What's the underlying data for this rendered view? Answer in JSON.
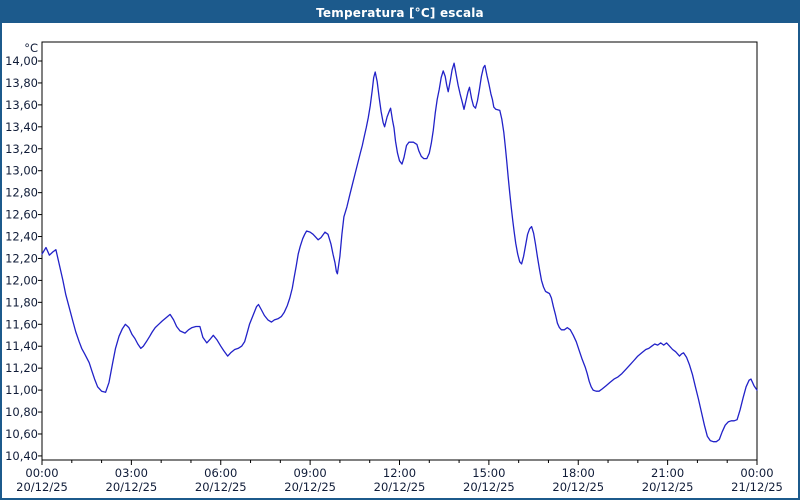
{
  "window": {
    "title": "Temperatura [°C] escala"
  },
  "colors": {
    "titlebar_bg": "#1c5a8c",
    "window_border": "#1c5a8c",
    "title_text": "#ffffff",
    "plot_bg": "#ffffff",
    "plot_border": "#000000",
    "grid": "#1c1c1c",
    "axis_text": "#101c38",
    "line": "#2222c8"
  },
  "chart_data": {
    "type": "line",
    "title": "Temperatura [°C] escala",
    "xlabel": "",
    "ylabel": "°C",
    "grid": true,
    "legend_position": "none",
    "ylim": [
      10.4,
      14.0
    ],
    "y_axis": {
      "unit_label": "°C",
      "min": 10.4,
      "max": 14.0,
      "step": 0.2,
      "tick_labels": [
        "14,00",
        "13,80",
        "13,60",
        "13,40",
        "13,20",
        "13,00",
        "12,80",
        "12,60",
        "12,40",
        "12,20",
        "12,00",
        "11,80",
        "11,60",
        "11,40",
        "11,20",
        "11,00",
        "10,80",
        "10,60",
        "10,40"
      ]
    },
    "x_axis": {
      "span_hours": 24,
      "major_step_hours": 3,
      "minor_step_hours": 1,
      "tick_labels": [
        {
          "time": "00:00",
          "date": "20/12/25"
        },
        {
          "time": "03:00",
          "date": "20/12/25"
        },
        {
          "time": "06:00",
          "date": "20/12/25"
        },
        {
          "time": "09:00",
          "date": "20/12/25"
        },
        {
          "time": "12:00",
          "date": "20/12/25"
        },
        {
          "time": "15:00",
          "date": "20/12/25"
        },
        {
          "time": "18:00",
          "date": "20/12/25"
        },
        {
          "time": "21:00",
          "date": "20/12/25"
        },
        {
          "time": "00:00",
          "date": "21/12/25"
        }
      ]
    },
    "series": [
      {
        "name": "temperatura",
        "color": "#2222c8",
        "points_time_min_value_c": [
          [
            0,
            12.24
          ],
          [
            8,
            12.3
          ],
          [
            15,
            12.23
          ],
          [
            22,
            12.26
          ],
          [
            28,
            12.28
          ],
          [
            35,
            12.14
          ],
          [
            42,
            12.0
          ],
          [
            48,
            11.87
          ],
          [
            55,
            11.75
          ],
          [
            62,
            11.63
          ],
          [
            68,
            11.53
          ],
          [
            75,
            11.44
          ],
          [
            80,
            11.38
          ],
          [
            86,
            11.33
          ],
          [
            95,
            11.25
          ],
          [
            100,
            11.18
          ],
          [
            106,
            11.1
          ],
          [
            112,
            11.03
          ],
          [
            120,
            10.99
          ],
          [
            128,
            10.98
          ],
          [
            135,
            11.07
          ],
          [
            142,
            11.24
          ],
          [
            148,
            11.38
          ],
          [
            155,
            11.49
          ],
          [
            162,
            11.56
          ],
          [
            168,
            11.6
          ],
          [
            175,
            11.57
          ],
          [
            181,
            11.51
          ],
          [
            187,
            11.47
          ],
          [
            193,
            11.42
          ],
          [
            199,
            11.38
          ],
          [
            204,
            11.4
          ],
          [
            210,
            11.44
          ],
          [
            217,
            11.49
          ],
          [
            222,
            11.53
          ],
          [
            228,
            11.57
          ],
          [
            235,
            11.6
          ],
          [
            242,
            11.63
          ],
          [
            250,
            11.66
          ],
          [
            258,
            11.69
          ],
          [
            265,
            11.64
          ],
          [
            271,
            11.58
          ],
          [
            278,
            11.54
          ],
          [
            288,
            11.52
          ],
          [
            295,
            11.55
          ],
          [
            302,
            11.57
          ],
          [
            310,
            11.58
          ],
          [
            318,
            11.58
          ],
          [
            324,
            11.48
          ],
          [
            332,
            11.43
          ],
          [
            338,
            11.46
          ],
          [
            345,
            11.5
          ],
          [
            352,
            11.46
          ],
          [
            360,
            11.4
          ],
          [
            366,
            11.36
          ],
          [
            374,
            11.31
          ],
          [
            380,
            11.34
          ],
          [
            388,
            11.37
          ],
          [
            395,
            11.38
          ],
          [
            402,
            11.4
          ],
          [
            408,
            11.44
          ],
          [
            413,
            11.52
          ],
          [
            418,
            11.6
          ],
          [
            425,
            11.68
          ],
          [
            432,
            11.76
          ],
          [
            436,
            11.78
          ],
          [
            442,
            11.73
          ],
          [
            448,
            11.68
          ],
          [
            455,
            11.64
          ],
          [
            462,
            11.62
          ],
          [
            468,
            11.64
          ],
          [
            475,
            11.65
          ],
          [
            482,
            11.67
          ],
          [
            488,
            11.71
          ],
          [
            494,
            11.77
          ],
          [
            499,
            11.84
          ],
          [
            504,
            11.93
          ],
          [
            508,
            12.03
          ],
          [
            512,
            12.13
          ],
          [
            516,
            12.24
          ],
          [
            520,
            12.31
          ],
          [
            525,
            12.38
          ],
          [
            529,
            12.42
          ],
          [
            533,
            12.45
          ],
          [
            540,
            12.44
          ],
          [
            546,
            12.42
          ],
          [
            552,
            12.39
          ],
          [
            556,
            12.37
          ],
          [
            562,
            12.39
          ],
          [
            570,
            12.44
          ],
          [
            576,
            12.42
          ],
          [
            582,
            12.33
          ],
          [
            586,
            12.24
          ],
          [
            590,
            12.16
          ],
          [
            593,
            12.08
          ],
          [
            595,
            12.06
          ],
          [
            600,
            12.22
          ],
          [
            604,
            12.42
          ],
          [
            608,
            12.58
          ],
          [
            614,
            12.67
          ],
          [
            620,
            12.78
          ],
          [
            626,
            12.89
          ],
          [
            631,
            12.98
          ],
          [
            636,
            13.07
          ],
          [
            641,
            13.16
          ],
          [
            645,
            13.23
          ],
          [
            649,
            13.31
          ],
          [
            653,
            13.39
          ],
          [
            657,
            13.48
          ],
          [
            661,
            13.59
          ],
          [
            665,
            13.73
          ],
          [
            668,
            13.85
          ],
          [
            671,
            13.9
          ],
          [
            675,
            13.81
          ],
          [
            679,
            13.67
          ],
          [
            683,
            13.54
          ],
          [
            687,
            13.44
          ],
          [
            690,
            13.4
          ],
          [
            695,
            13.49
          ],
          [
            700,
            13.55
          ],
          [
            702,
            13.57
          ],
          [
            706,
            13.46
          ],
          [
            709,
            13.39
          ],
          [
            712,
            13.27
          ],
          [
            716,
            13.16
          ],
          [
            720,
            13.09
          ],
          [
            725,
            13.06
          ],
          [
            729,
            13.12
          ],
          [
            734,
            13.23
          ],
          [
            739,
            13.26
          ],
          [
            748,
            13.26
          ],
          [
            755,
            13.24
          ],
          [
            759,
            13.18
          ],
          [
            764,
            13.13
          ],
          [
            769,
            13.11
          ],
          [
            775,
            13.11
          ],
          [
            780,
            13.16
          ],
          [
            784,
            13.25
          ],
          [
            788,
            13.37
          ],
          [
            792,
            13.53
          ],
          [
            796,
            13.65
          ],
          [
            800,
            13.74
          ],
          [
            804,
            13.85
          ],
          [
            808,
            13.91
          ],
          [
            812,
            13.86
          ],
          [
            815,
            13.78
          ],
          [
            818,
            13.72
          ],
          [
            822,
            13.81
          ],
          [
            826,
            13.92
          ],
          [
            830,
            13.98
          ],
          [
            834,
            13.88
          ],
          [
            838,
            13.78
          ],
          [
            842,
            13.7
          ],
          [
            846,
            13.63
          ],
          [
            850,
            13.56
          ],
          [
            854,
            13.64
          ],
          [
            858,
            13.72
          ],
          [
            861,
            13.76
          ],
          [
            865,
            13.66
          ],
          [
            869,
            13.59
          ],
          [
            873,
            13.57
          ],
          [
            877,
            13.64
          ],
          [
            881,
            13.74
          ],
          [
            885,
            13.86
          ],
          [
            889,
            13.94
          ],
          [
            892,
            13.96
          ],
          [
            896,
            13.87
          ],
          [
            900,
            13.79
          ],
          [
            904,
            13.7
          ],
          [
            907,
            13.65
          ],
          [
            910,
            13.58
          ],
          [
            914,
            13.56
          ],
          [
            922,
            13.55
          ],
          [
            926,
            13.47
          ],
          [
            930,
            13.35
          ],
          [
            933,
            13.22
          ],
          [
            936,
            13.08
          ],
          [
            939,
            12.94
          ],
          [
            942,
            12.8
          ],
          [
            945,
            12.67
          ],
          [
            948,
            12.55
          ],
          [
            951,
            12.44
          ],
          [
            954,
            12.34
          ],
          [
            958,
            12.24
          ],
          [
            962,
            12.17
          ],
          [
            966,
            12.15
          ],
          [
            970,
            12.22
          ],
          [
            974,
            12.32
          ],
          [
            978,
            12.42
          ],
          [
            982,
            12.47
          ],
          [
            986,
            12.49
          ],
          [
            990,
            12.43
          ],
          [
            994,
            12.33
          ],
          [
            998,
            12.21
          ],
          [
            1002,
            12.1
          ],
          [
            1006,
            12.0
          ],
          [
            1010,
            11.94
          ],
          [
            1014,
            11.9
          ],
          [
            1018,
            11.89
          ],
          [
            1022,
            11.88
          ],
          [
            1026,
            11.84
          ],
          [
            1030,
            11.76
          ],
          [
            1034,
            11.69
          ],
          [
            1038,
            11.61
          ],
          [
            1042,
            11.57
          ],
          [
            1046,
            11.55
          ],
          [
            1052,
            11.55
          ],
          [
            1058,
            11.57
          ],
          [
            1064,
            11.55
          ],
          [
            1070,
            11.5
          ],
          [
            1076,
            11.44
          ],
          [
            1082,
            11.36
          ],
          [
            1088,
            11.28
          ],
          [
            1094,
            11.21
          ],
          [
            1098,
            11.15
          ],
          [
            1102,
            11.08
          ],
          [
            1106,
            11.03
          ],
          [
            1110,
            11.0
          ],
          [
            1116,
            10.99
          ],
          [
            1122,
            10.99
          ],
          [
            1128,
            11.01
          ],
          [
            1136,
            11.04
          ],
          [
            1144,
            11.07
          ],
          [
            1152,
            11.1
          ],
          [
            1160,
            11.12
          ],
          [
            1168,
            11.15
          ],
          [
            1176,
            11.19
          ],
          [
            1184,
            11.23
          ],
          [
            1192,
            11.27
          ],
          [
            1200,
            11.31
          ],
          [
            1208,
            11.34
          ],
          [
            1216,
            11.37
          ],
          [
            1222,
            11.38
          ],
          [
            1228,
            11.4
          ],
          [
            1234,
            11.42
          ],
          [
            1240,
            11.41
          ],
          [
            1246,
            11.43
          ],
          [
            1252,
            11.41
          ],
          [
            1258,
            11.43
          ],
          [
            1264,
            11.4
          ],
          [
            1270,
            11.37
          ],
          [
            1276,
            11.35
          ],
          [
            1280,
            11.33
          ],
          [
            1284,
            11.31
          ],
          [
            1288,
            11.33
          ],
          [
            1292,
            11.34
          ],
          [
            1298,
            11.3
          ],
          [
            1304,
            11.23
          ],
          [
            1310,
            11.14
          ],
          [
            1316,
            11.03
          ],
          [
            1322,
            10.92
          ],
          [
            1328,
            10.8
          ],
          [
            1334,
            10.68
          ],
          [
            1340,
            10.58
          ],
          [
            1346,
            10.54
          ],
          [
            1352,
            10.53
          ],
          [
            1358,
            10.53
          ],
          [
            1364,
            10.55
          ],
          [
            1370,
            10.62
          ],
          [
            1376,
            10.68
          ],
          [
            1382,
            10.71
          ],
          [
            1388,
            10.72
          ],
          [
            1394,
            10.72
          ],
          [
            1400,
            10.73
          ],
          [
            1406,
            10.82
          ],
          [
            1412,
            10.93
          ],
          [
            1418,
            11.03
          ],
          [
            1424,
            11.09
          ],
          [
            1428,
            11.1
          ],
          [
            1434,
            11.04
          ],
          [
            1440,
            11.0
          ]
        ]
      }
    ]
  }
}
